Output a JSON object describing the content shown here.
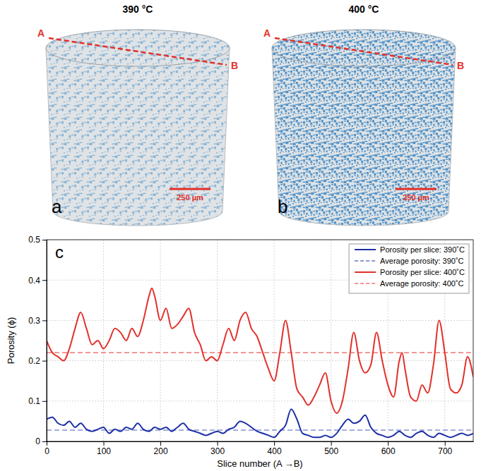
{
  "renders": [
    {
      "letter": "a",
      "title": "390 °C",
      "start": "A",
      "end": "B",
      "scale_bar": "250 µm"
    },
    {
      "letter": "b",
      "title": "400 °C",
      "start": "A",
      "end": "B",
      "scale_bar": "250 µm"
    }
  ],
  "chart_data": {
    "type": "line",
    "letter": "c",
    "x_label": "Slice number (A →B)",
    "y_label": "Porosity (ϕ)",
    "xlim": [
      0,
      750
    ],
    "ylim": [
      0,
      0.5
    ],
    "xticks": [
      0,
      100,
      200,
      300,
      400,
      500,
      600,
      700
    ],
    "yticks": [
      0,
      0.1,
      0.2,
      0.3,
      0.4,
      0.5
    ],
    "grid": true,
    "legend": "top-right",
    "series": [
      {
        "name": "Porosity per slice: 390˚C",
        "color": "#1c2fa6",
        "line_style": "solid",
        "x": [
          0,
          10,
          20,
          30,
          40,
          50,
          60,
          70,
          80,
          90,
          100,
          110,
          120,
          130,
          140,
          150,
          160,
          170,
          180,
          190,
          200,
          210,
          220,
          230,
          240,
          250,
          260,
          270,
          280,
          290,
          300,
          310,
          320,
          330,
          340,
          350,
          360,
          370,
          380,
          390,
          400,
          410,
          420,
          430,
          440,
          450,
          460,
          470,
          480,
          490,
          500,
          510,
          520,
          530,
          540,
          550,
          560,
          570,
          580,
          590,
          600,
          610,
          620,
          630,
          640,
          650,
          660,
          670,
          680,
          690,
          700,
          710,
          720,
          730,
          740,
          750
        ],
        "values": [
          0.055,
          0.06,
          0.045,
          0.04,
          0.05,
          0.035,
          0.045,
          0.03,
          0.025,
          0.03,
          0.035,
          0.02,
          0.03,
          0.025,
          0.035,
          0.03,
          0.045,
          0.03,
          0.025,
          0.035,
          0.03,
          0.035,
          0.025,
          0.035,
          0.045,
          0.03,
          0.025,
          0.02,
          0.015,
          0.02,
          0.025,
          0.02,
          0.03,
          0.035,
          0.05,
          0.045,
          0.035,
          0.025,
          0.02,
          0.015,
          0.01,
          0.025,
          0.04,
          0.08,
          0.055,
          0.02,
          0.015,
          0.01,
          0.01,
          0.015,
          0.01,
          0.02,
          0.04,
          0.055,
          0.045,
          0.05,
          0.065,
          0.035,
          0.02,
          0.015,
          0.01,
          0.015,
          0.025,
          0.015,
          0.01,
          0.02,
          0.025,
          0.015,
          0.01,
          0.02,
          0.015,
          0.01,
          0.015,
          0.02,
          0.015,
          0.02
        ]
      },
      {
        "name": "Average porosity: 390˚C",
        "color": "#1c2fa6",
        "line_style": "dashed",
        "x": [
          0,
          750
        ],
        "values": [
          0.028,
          0.028
        ]
      },
      {
        "name": "Porosity per slice: 400˚C",
        "color": "#e3302a",
        "line_style": "solid",
        "x": [
          0,
          10,
          20,
          30,
          40,
          50,
          60,
          70,
          80,
          90,
          100,
          110,
          120,
          130,
          140,
          150,
          160,
          170,
          180,
          185,
          190,
          200,
          210,
          220,
          230,
          240,
          250,
          260,
          270,
          280,
          290,
          300,
          310,
          320,
          330,
          340,
          350,
          360,
          370,
          380,
          390,
          400,
          410,
          420,
          430,
          440,
          450,
          460,
          470,
          480,
          490,
          500,
          510,
          520,
          530,
          540,
          550,
          560,
          570,
          580,
          590,
          600,
          610,
          620,
          625,
          630,
          640,
          650,
          660,
          670,
          680,
          690,
          700,
          710,
          720,
          730,
          740,
          750
        ],
        "values": [
          0.25,
          0.22,
          0.21,
          0.2,
          0.23,
          0.28,
          0.32,
          0.28,
          0.24,
          0.25,
          0.23,
          0.25,
          0.28,
          0.27,
          0.25,
          0.28,
          0.26,
          0.3,
          0.36,
          0.38,
          0.36,
          0.3,
          0.33,
          0.28,
          0.29,
          0.31,
          0.33,
          0.27,
          0.24,
          0.2,
          0.21,
          0.2,
          0.24,
          0.28,
          0.25,
          0.3,
          0.32,
          0.28,
          0.26,
          0.22,
          0.18,
          0.15,
          0.22,
          0.3,
          0.22,
          0.13,
          0.11,
          0.09,
          0.11,
          0.14,
          0.17,
          0.1,
          0.07,
          0.1,
          0.18,
          0.27,
          0.2,
          0.17,
          0.19,
          0.27,
          0.2,
          0.14,
          0.11,
          0.2,
          0.22,
          0.18,
          0.11,
          0.1,
          0.14,
          0.12,
          0.19,
          0.3,
          0.22,
          0.13,
          0.12,
          0.14,
          0.21,
          0.16
        ]
      },
      {
        "name": "Average porosity: 400˚C",
        "color": "#e3302a",
        "line_style": "dashed",
        "x": [
          0,
          750
        ],
        "values": [
          0.22,
          0.22
        ]
      }
    ]
  }
}
